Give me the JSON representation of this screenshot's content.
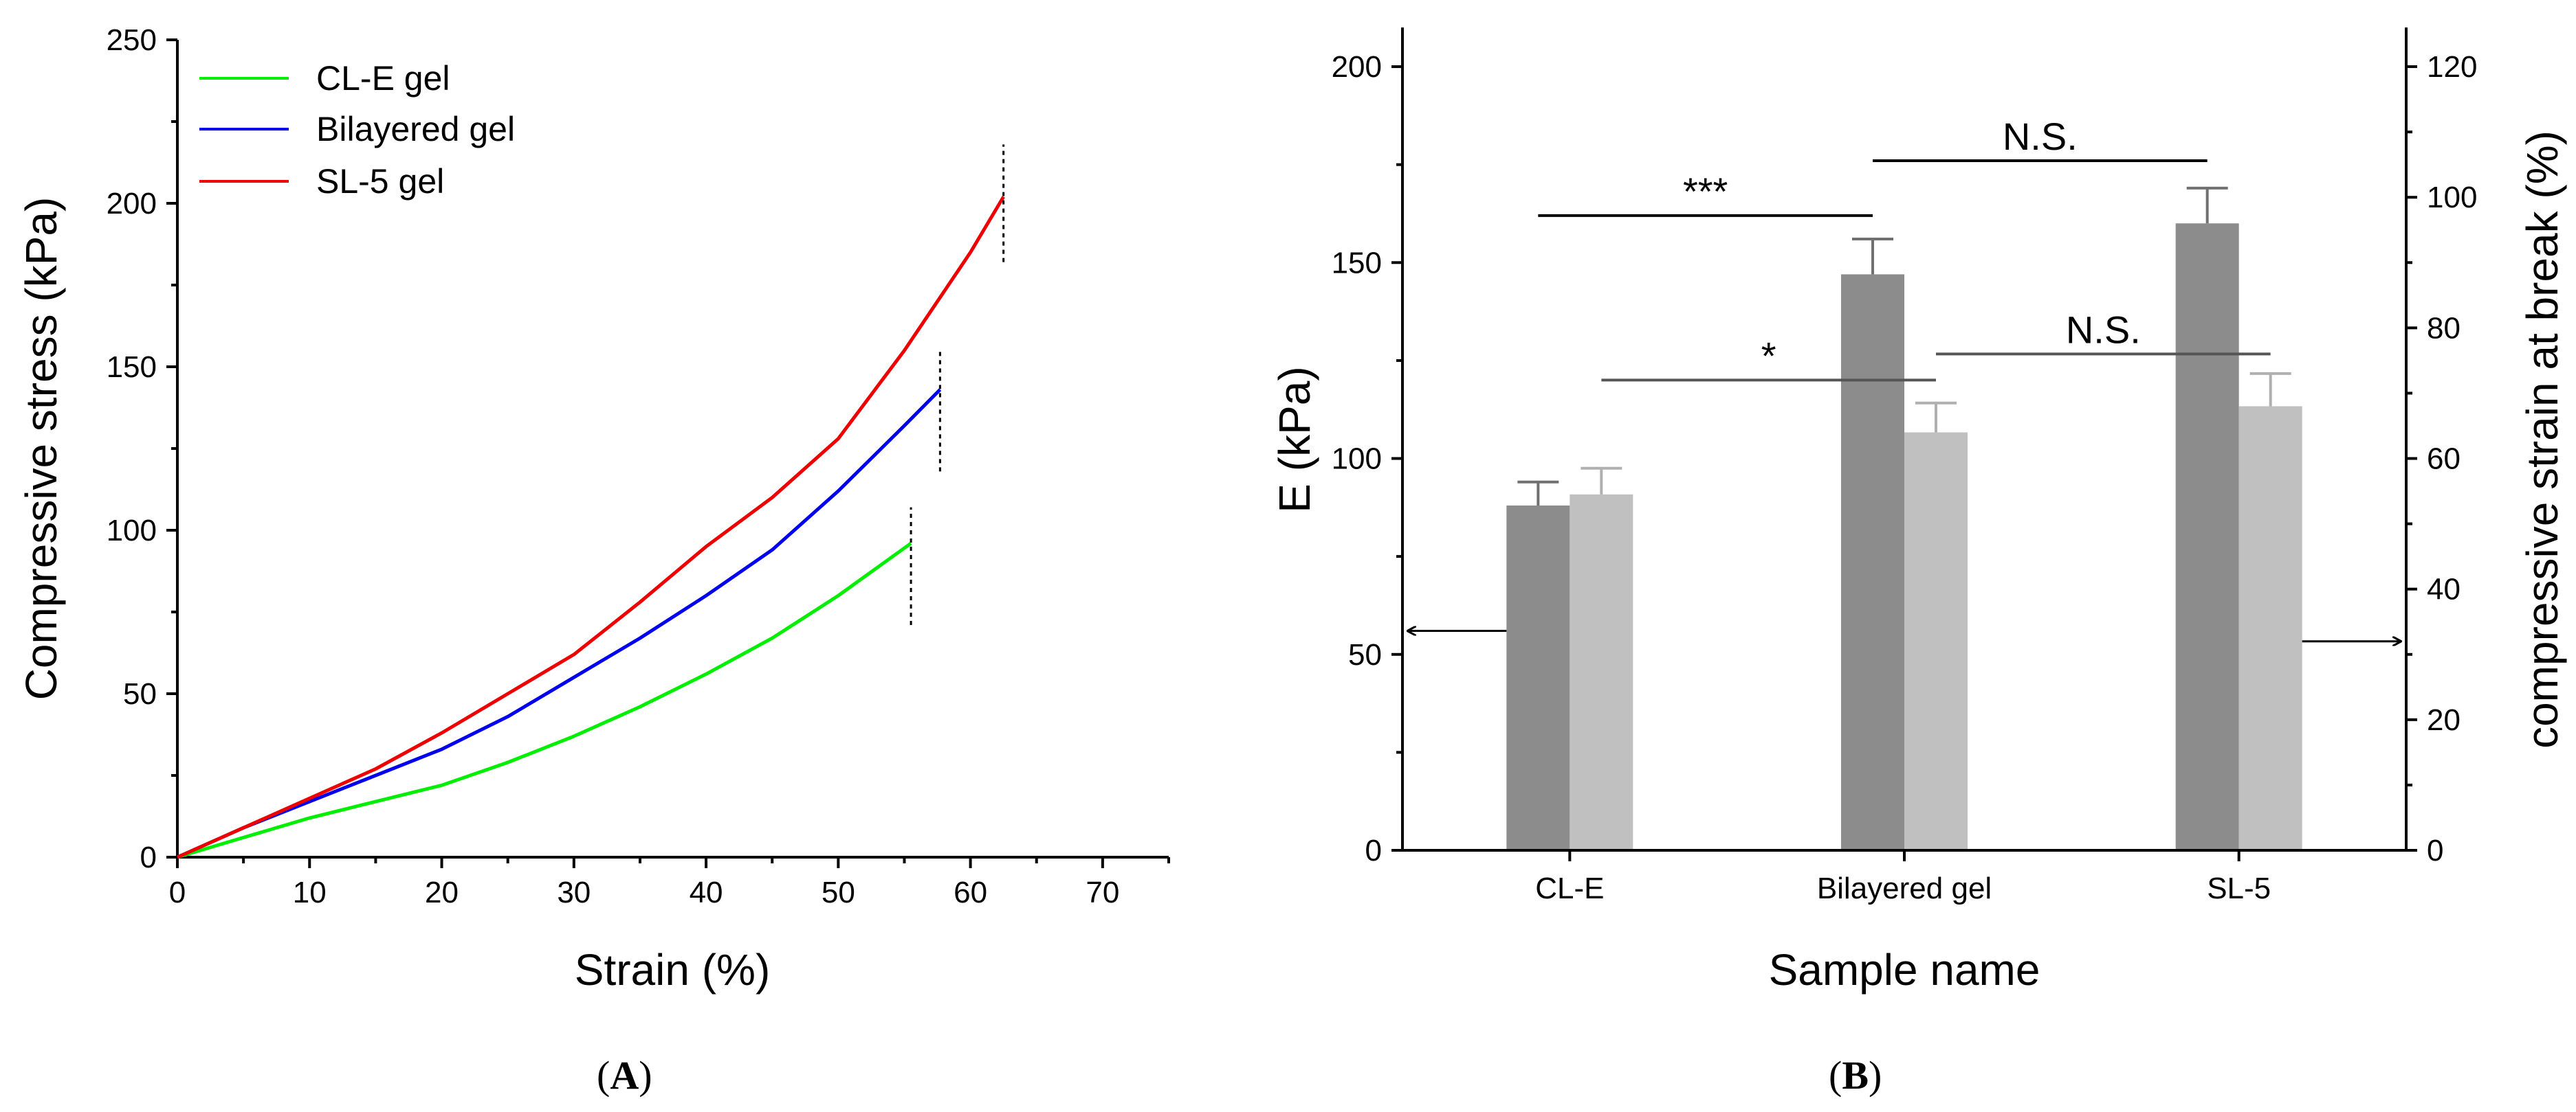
{
  "chart_data": [
    {
      "panel": "A",
      "type": "line",
      "xlabel": "Strain (%)",
      "ylabel": "Compressive stress (kPa)",
      "xlim": [
        0,
        75
      ],
      "ylim": [
        0,
        250
      ],
      "xticks": [
        0,
        10,
        20,
        30,
        40,
        50,
        60,
        70
      ],
      "yticks": [
        0,
        50,
        100,
        150,
        200,
        250
      ],
      "legend_position": "top-left",
      "series": [
        {
          "name": "CL-E gel",
          "color": "#00ee00",
          "points": [
            [
              0,
              0
            ],
            [
              5,
              6
            ],
            [
              10,
              12
            ],
            [
              15,
              17
            ],
            [
              20,
              22
            ],
            [
              25,
              29
            ],
            [
              30,
              37
            ],
            [
              35,
              46
            ],
            [
              40,
              56
            ],
            [
              45,
              67
            ],
            [
              50,
              80
            ],
            [
              55.5,
              96
            ]
          ],
          "break_marker": {
            "x": 55.5,
            "y_range": [
              71,
              107
            ]
          }
        },
        {
          "name": "Bilayered gel",
          "color": "#0000ee",
          "points": [
            [
              0,
              0
            ],
            [
              5,
              9
            ],
            [
              10,
              17
            ],
            [
              15,
              25
            ],
            [
              20,
              33
            ],
            [
              25,
              43
            ],
            [
              30,
              55
            ],
            [
              35,
              67
            ],
            [
              40,
              80
            ],
            [
              45,
              94
            ],
            [
              50,
              112
            ],
            [
              55,
              132
            ],
            [
              57.7,
              143
            ]
          ],
          "break_marker": {
            "x": 57.7,
            "y_range": [
              118,
              155
            ]
          }
        },
        {
          "name": "SL-5 gel",
          "color": "#ee0000",
          "points": [
            [
              0,
              0
            ],
            [
              5,
              9
            ],
            [
              10,
              18
            ],
            [
              15,
              27
            ],
            [
              20,
              38
            ],
            [
              25,
              50
            ],
            [
              30,
              62
            ],
            [
              35,
              78
            ],
            [
              40,
              95
            ],
            [
              45,
              110
            ],
            [
              50,
              128
            ],
            [
              55,
              155
            ],
            [
              60,
              185
            ],
            [
              62.5,
              202
            ]
          ],
          "break_marker": {
            "x": 62.5,
            "y_range": [
              182,
              218
            ]
          }
        }
      ]
    },
    {
      "panel": "B",
      "type": "bar",
      "xlabel": "Sample name",
      "ylabel": "E (kPa)",
      "y2label": "compressive strain at break (%)",
      "categories": [
        "CL-E",
        "Bilayered gel",
        "SL-5"
      ],
      "ylim": [
        0,
        210
      ],
      "yticks": [
        0,
        50,
        100,
        150,
        200
      ],
      "y2lim": [
        0,
        126
      ],
      "y2ticks": [
        0,
        20,
        40,
        60,
        80,
        100,
        120
      ],
      "series": [
        {
          "name": "E (kPa)",
          "axis": "left",
          "color": "#8c8c8c",
          "values": [
            88,
            147,
            160
          ],
          "errors": [
            6,
            9,
            9
          ]
        },
        {
          "name": "compressive strain at break (%)",
          "axis": "right",
          "color": "#c0c0c0",
          "values": [
            54.5,
            64,
            68
          ],
          "errors": [
            4,
            4.5,
            5
          ]
        }
      ],
      "significance": [
        {
          "label": "***",
          "axis": "left",
          "from_category": 0,
          "to_category": 1,
          "bar_series": 0,
          "y": 162
        },
        {
          "label": "N.S.",
          "axis": "left",
          "from_category": 1,
          "to_category": 2,
          "bar_series": 0,
          "y": 176
        },
        {
          "label": "*",
          "axis": "right",
          "from_category": 0,
          "to_category": 1,
          "bar_series": 1,
          "y": 72
        },
        {
          "label": "N.S.",
          "axis": "right",
          "from_category": 1,
          "to_category": 2,
          "bar_series": 1,
          "y": 76
        }
      ],
      "axis_arrows": [
        {
          "points_to": "left axis",
          "y": 56
        },
        {
          "points_to": "right axis",
          "y": 32
        }
      ]
    }
  ],
  "panel_labels": {
    "a": "A",
    "b": "B"
  }
}
